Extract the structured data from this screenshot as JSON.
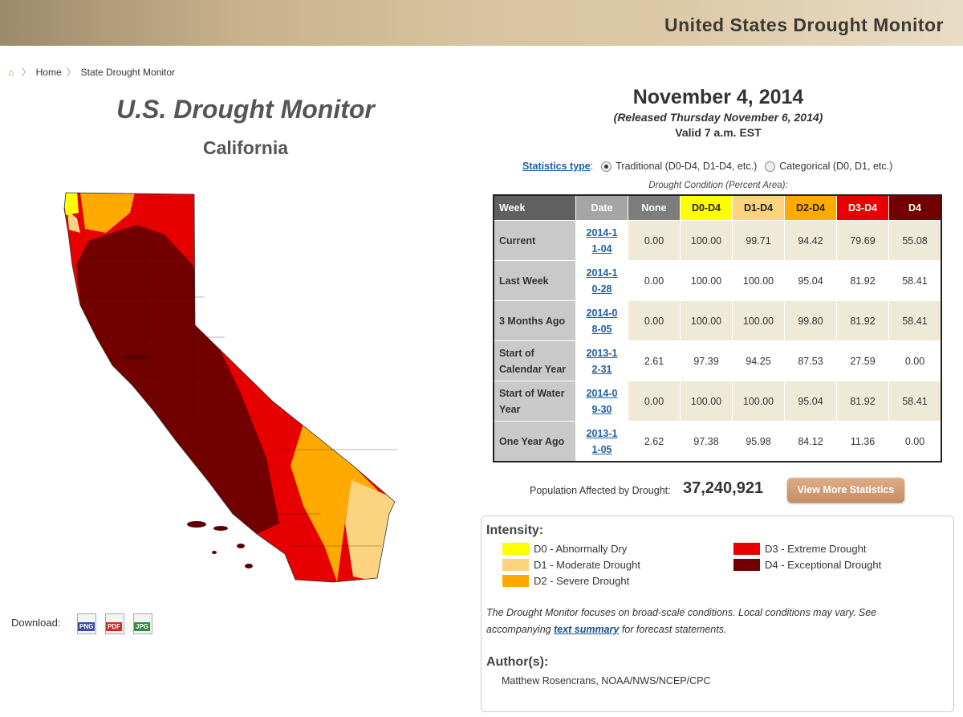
{
  "header": {
    "title": "United States Drought Monitor"
  },
  "breadcrumb": [
    "Home",
    "State Drought Monitor"
  ],
  "map": {
    "title": "U.S. Drought Monitor",
    "subtitle": "California"
  },
  "download": {
    "label": "Download:",
    "formats": [
      {
        "text": "PNG",
        "color": "#3a4fa0"
      },
      {
        "text": "PDF",
        "color": "#d02a2a"
      },
      {
        "text": "JPG",
        "color": "#2f8f3f"
      }
    ]
  },
  "summary": {
    "date": "November 4, 2014",
    "released": "(Released Thursday November 6, 2014)",
    "valid": "Valid 7 a.m. EST"
  },
  "stats_type": {
    "link": "Statistics type",
    "separator": ":",
    "options": [
      "Traditional (D0-D4, D1-D4, etc.)",
      "Categorical (D0, D1, etc.)"
    ],
    "selected": 0
  },
  "table": {
    "caption": "Drought Condition (Percent Area):",
    "headers": [
      "Week",
      "Date",
      "None",
      "D0-D4",
      "D1-D4",
      "D2-D4",
      "D3-D4",
      "D4"
    ],
    "rows": [
      [
        "Current",
        "2014-11-04",
        "0.00",
        "100.00",
        "99.71",
        "94.42",
        "79.69",
        "55.08"
      ],
      [
        "Last Week",
        "2014-10-28",
        "0.00",
        "100.00",
        "100.00",
        "95.04",
        "81.92",
        "58.41"
      ],
      [
        "3 Months Ago",
        "2014-08-05",
        "0.00",
        "100.00",
        "100.00",
        "99.80",
        "81.92",
        "58.41"
      ],
      [
        "Start of Calendar Year",
        "2013-12-31",
        "2.61",
        "97.39",
        "94.25",
        "87.53",
        "27.59",
        "0.00"
      ],
      [
        "Start of Water Year",
        "2014-09-30",
        "0.00",
        "100.00",
        "100.00",
        "95.04",
        "81.92",
        "58.41"
      ],
      [
        "One Year Ago",
        "2013-11-05",
        "2.62",
        "97.38",
        "95.98",
        "84.12",
        "11.36",
        "0.00"
      ]
    ]
  },
  "population": {
    "label": "Population Affected by Drought:",
    "value": "37,240,921",
    "button": "View More Statistics"
  },
  "legend": {
    "title": "Intensity:",
    "items": [
      {
        "label": "D0 - Abnormally Dry",
        "color": "#ffff00"
      },
      {
        "label": "D1 - Moderate Drought",
        "color": "#fcd37f"
      },
      {
        "label": "D2 - Severe Drought",
        "color": "#ffaa00"
      },
      {
        "label": "D3 - Extreme Drought",
        "color": "#e60000"
      },
      {
        "label": "D4 - Exceptional Drought",
        "color": "#730000"
      }
    ]
  },
  "note": {
    "before": "The Drought Monitor focuses on broad-scale conditions. Local conditions may vary. See accompanying ",
    "link": "text summary",
    "after": " for forecast statements."
  },
  "authors": {
    "title": "Author(s):",
    "names": "Matthew Rosencrans, NOAA/NWS/NCEP/CPC"
  }
}
